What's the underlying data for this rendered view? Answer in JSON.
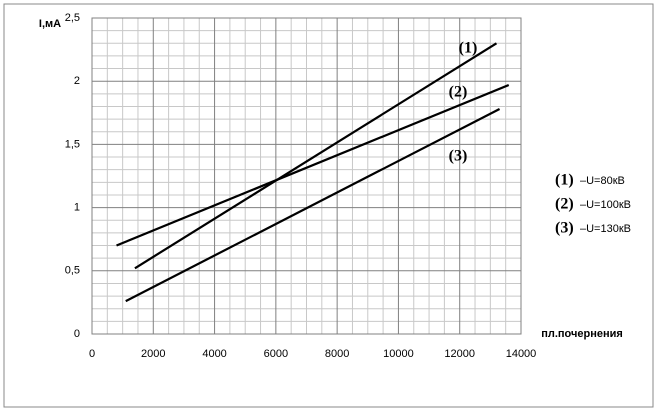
{
  "chart_data": {
    "type": "line",
    "y_label": "I,мА",
    "x_label": "пл.почернения",
    "xlim": [
      0,
      14000
    ],
    "xticks": [
      0,
      2000,
      4000,
      6000,
      8000,
      10000,
      12000,
      14000
    ],
    "ylim": [
      0,
      2.5
    ],
    "yticks": [
      0,
      {
        "value": 0.5,
        "label": "0,5"
      },
      1,
      {
        "value": 1.5,
        "label": "1,5"
      },
      2,
      {
        "value": 2.5,
        "label": "2,5"
      }
    ],
    "grid": true,
    "minor_grid": true,
    "series": [
      {
        "name": "(1)",
        "description": "–U=80кВ",
        "color": "#000000",
        "x": [
          1400,
          13200
        ],
        "values": [
          0.52,
          2.3
        ]
      },
      {
        "name": "(2)",
        "description": "–U=100кВ",
        "color": "#000000",
        "x": [
          800,
          13600
        ],
        "values": [
          0.7,
          1.97
        ]
      },
      {
        "name": "(3)",
        "description": "–U=130кВ",
        "color": "#000000",
        "x": [
          1100,
          13300
        ],
        "values": [
          0.26,
          1.78
        ]
      }
    ]
  }
}
